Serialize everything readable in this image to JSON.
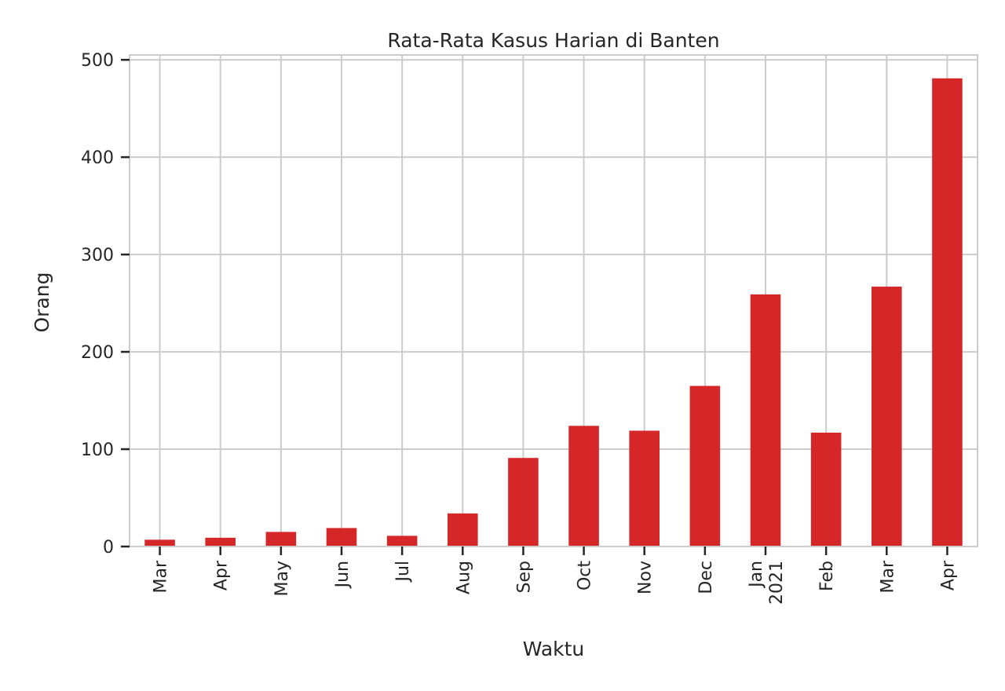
{
  "chart_data": {
    "type": "bar",
    "title": "Rata-Rata Kasus Harian di Banten",
    "xlabel": "Waktu",
    "ylabel": "Orang",
    "categories": [
      [
        "Mar"
      ],
      [
        "Apr"
      ],
      [
        "May"
      ],
      [
        "Jun"
      ],
      [
        "Jul"
      ],
      [
        "Aug"
      ],
      [
        "Sep"
      ],
      [
        "Oct"
      ],
      [
        "Nov"
      ],
      [
        "Dec"
      ],
      [
        "Jan",
        "2021"
      ],
      [
        "Feb"
      ],
      [
        "Mar"
      ],
      [
        "Apr"
      ]
    ],
    "values": [
      7,
      9,
      15,
      19,
      11,
      34,
      91,
      124,
      119,
      165,
      259,
      117,
      267,
      481
    ],
    "ylim": [
      0,
      505
    ],
    "yticks": [
      0,
      100,
      200,
      300,
      400,
      500
    ],
    "grid": true,
    "bar_color": "#d62728"
  }
}
